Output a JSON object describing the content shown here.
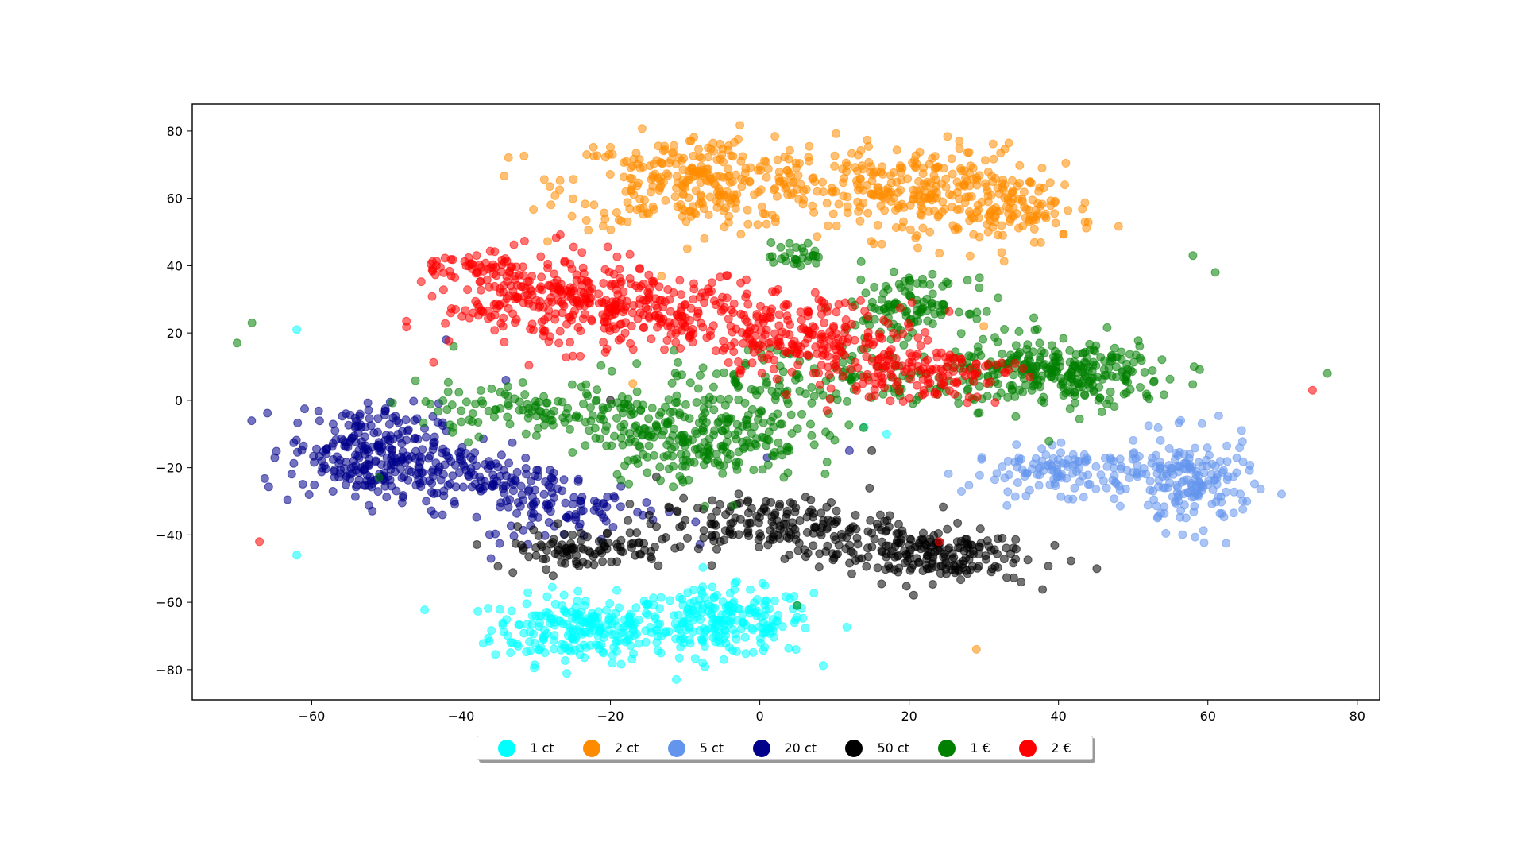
{
  "chart_data": {
    "type": "scatter",
    "title": "",
    "xlabel": "",
    "ylabel": "",
    "xlim": [
      -76,
      83
    ],
    "ylim": [
      -89,
      88
    ],
    "xticks": [
      -60,
      -40,
      -20,
      0,
      20,
      40,
      60,
      80
    ],
    "yticks": [
      -80,
      -60,
      -40,
      -20,
      0,
      20,
      40,
      60,
      80
    ],
    "xtick_labels": [
      "−60",
      "−40",
      "−20",
      "0",
      "20",
      "40",
      "60",
      "80"
    ],
    "ytick_labels": [
      "−80",
      "−60",
      "−40",
      "−20",
      "0",
      "20",
      "40",
      "60",
      "80"
    ],
    "grid": false,
    "legend_position": "bottom-center",
    "marker_alpha": 0.55,
    "series": [
      {
        "name": "1 ct",
        "color": "#00ffff",
        "clusters": [
          {
            "cx": -24,
            "cy": -68,
            "sx": 6,
            "sy": 5,
            "n": 220
          },
          {
            "cx": -5,
            "cy": -66,
            "sx": 6,
            "sy": 5,
            "n": 220
          }
        ],
        "outliers": [
          [
            -62,
            21
          ],
          [
            -62,
            -46
          ],
          [
            14,
            -8
          ],
          [
            17,
            -10
          ]
        ]
      },
      {
        "name": "2 ct",
        "color": "#ff8c00",
        "clusters": [
          {
            "cx": -8,
            "cy": 65,
            "sx": 9,
            "sy": 7,
            "n": 300
          },
          {
            "cx": 20,
            "cy": 62,
            "sx": 8,
            "sy": 7,
            "n": 250
          },
          {
            "cx": 35,
            "cy": 57,
            "sx": 5,
            "sy": 5,
            "n": 100
          }
        ],
        "outliers": [
          [
            29,
            -74
          ],
          [
            38,
            63
          ],
          [
            -17,
            5
          ],
          [
            30,
            22
          ]
        ]
      },
      {
        "name": "5 ct",
        "color": "#6495ed",
        "clusters": [
          {
            "cx": 42,
            "cy": -21,
            "sx": 7,
            "sy": 3.5,
            "n": 140
          },
          {
            "cx": 58,
            "cy": -25,
            "sx": 4,
            "sy": 7,
            "n": 160
          }
        ],
        "outliers": []
      },
      {
        "name": "20 ct",
        "color": "#00008b",
        "clusters": [
          {
            "cx": -53,
            "cy": -15,
            "sx": 5,
            "sy": 7,
            "n": 220
          },
          {
            "cx": -40,
            "cy": -22,
            "sx": 7,
            "sy": 5,
            "n": 160
          },
          {
            "cx": -25,
            "cy": -32,
            "sx": 6,
            "sy": 5,
            "n": 90
          }
        ],
        "outliers": [
          [
            -42,
            18
          ],
          [
            -34,
            6
          ],
          [
            -36,
            -47
          ],
          [
            1,
            -17
          ],
          [
            12,
            -15
          ]
        ]
      },
      {
        "name": "50 ct",
        "color": "#000000",
        "clusters": [
          {
            "cx": -24,
            "cy": -44,
            "sx": 6,
            "sy": 3,
            "n": 100
          },
          {
            "cx": 2,
            "cy": -37,
            "sx": 8,
            "sy": 4,
            "n": 180
          },
          {
            "cx": 22,
            "cy": -46,
            "sx": 7,
            "sy": 4,
            "n": 200
          }
        ],
        "outliers": [
          [
            35,
            -54
          ],
          [
            15,
            -15
          ],
          [
            -20,
            0
          ]
        ]
      },
      {
        "name": "1 €",
        "color": "#008000",
        "clusters": [
          {
            "cx": -8,
            "cy": -10,
            "sx": 7,
            "sy": 7,
            "n": 260
          },
          {
            "cx": -30,
            "cy": -3,
            "sx": 8,
            "sy": 4,
            "n": 120
          },
          {
            "cx": 40,
            "cy": 8,
            "sx": 8,
            "sy": 5,
            "n": 300
          },
          {
            "cx": 20,
            "cy": 28,
            "sx": 4,
            "sy": 4,
            "n": 110
          },
          {
            "cx": 8,
            "cy": 6,
            "sx": 12,
            "sy": 6,
            "n": 140
          },
          {
            "cx": 5,
            "cy": 43,
            "sx": 2,
            "sy": 2,
            "n": 30
          }
        ],
        "outliers": [
          [
            -70,
            17
          ],
          [
            -68,
            23
          ],
          [
            58,
            43
          ],
          [
            61,
            38
          ],
          [
            76,
            8
          ],
          [
            -51,
            -23
          ],
          [
            5,
            -61
          ],
          [
            -41,
            16
          ]
        ]
      },
      {
        "name": "2 €",
        "color": "#ff0000",
        "clusters": [
          {
            "cx": -28,
            "cy": 30,
            "sx": 7,
            "sy": 7,
            "n": 260
          },
          {
            "cx": -10,
            "cy": 26,
            "sx": 8,
            "sy": 5,
            "n": 180
          },
          {
            "cx": 8,
            "cy": 18,
            "sx": 7,
            "sy": 6,
            "n": 200
          },
          {
            "cx": 22,
            "cy": 8,
            "sx": 6,
            "sy": 4,
            "n": 120
          },
          {
            "cx": -39,
            "cy": 40,
            "sx": 4,
            "sy": 2,
            "n": 40
          }
        ],
        "outliers": [
          [
            -67,
            -42
          ],
          [
            74,
            3
          ],
          [
            24,
            -42
          ],
          [
            9,
            -3
          ]
        ]
      }
    ]
  }
}
